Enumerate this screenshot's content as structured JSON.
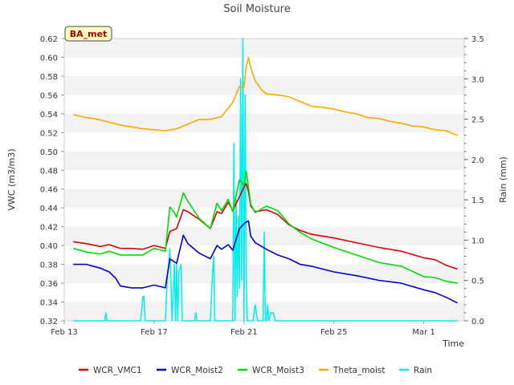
{
  "chart_data": {
    "type": "line",
    "title": "Soil Moisture",
    "station_badge": "BA_met",
    "xlabel": "Time",
    "ylabel": "VWC (m3/m3)",
    "y2label": "Rain (mm)",
    "xlim": [
      13,
      30.8
    ],
    "ylim": [
      0.32,
      0.62
    ],
    "y2lim": [
      0,
      3.5
    ],
    "x_tick_values": [
      13,
      17,
      21,
      25,
      29
    ],
    "x_tick_labels": [
      "Feb 13",
      "Feb 17",
      "Feb 21",
      "Feb 25",
      "Mar 1"
    ],
    "y_ticks": [
      "0.32",
      "0.34",
      "0.36",
      "0.38",
      "0.40",
      "0.42",
      "0.44",
      "0.46",
      "0.48",
      "0.50",
      "0.52",
      "0.54",
      "0.56",
      "0.58",
      "0.60",
      "0.62"
    ],
    "y2_ticks": [
      "0.0",
      "0.5",
      "1.0",
      "1.5",
      "2.0",
      "2.5",
      "3.0",
      "3.5"
    ],
    "grid": "horizontal bands",
    "legend_position": "bottom",
    "series": [
      {
        "name": "WCR_VMC1",
        "axis": "left",
        "color": "#dd0000",
        "x": [
          13.4,
          14.0,
          14.6,
          15.0,
          15.5,
          16.0,
          16.5,
          17.0,
          17.5,
          17.7,
          18.0,
          18.3,
          18.5,
          19.0,
          19.5,
          19.8,
          20.0,
          20.3,
          20.5,
          20.8,
          21.0,
          21.1,
          21.2,
          21.3,
          21.5,
          22.0,
          22.5,
          23.0,
          23.5,
          24.0,
          25.0,
          26.0,
          27.0,
          28.0,
          29.0,
          29.5,
          30.0,
          30.5
        ],
        "values": [
          0.404,
          0.402,
          0.399,
          0.401,
          0.397,
          0.397,
          0.396,
          0.4,
          0.397,
          0.415,
          0.418,
          0.438,
          0.436,
          0.428,
          0.418,
          0.436,
          0.434,
          0.446,
          0.437,
          0.452,
          0.462,
          0.466,
          0.457,
          0.442,
          0.436,
          0.438,
          0.433,
          0.422,
          0.416,
          0.412,
          0.408,
          0.403,
          0.398,
          0.394,
          0.387,
          0.385,
          0.379,
          0.375
        ]
      },
      {
        "name": "WCR_Moist2",
        "axis": "left",
        "color": "#0000cc",
        "x": [
          13.4,
          14.0,
          14.6,
          15.0,
          15.3,
          15.5,
          16.0,
          16.5,
          17.0,
          17.5,
          17.7,
          18.0,
          18.3,
          18.5,
          19.0,
          19.5,
          19.8,
          20.0,
          20.3,
          20.5,
          20.8,
          21.0,
          21.1,
          21.2,
          21.3,
          21.5,
          22.0,
          22.5,
          23.0,
          23.5,
          24.0,
          25.0,
          26.0,
          27.0,
          28.0,
          29.0,
          29.5,
          30.0,
          30.5
        ],
        "values": [
          0.38,
          0.38,
          0.376,
          0.372,
          0.365,
          0.357,
          0.355,
          0.355,
          0.358,
          0.355,
          0.386,
          0.381,
          0.411,
          0.402,
          0.392,
          0.386,
          0.4,
          0.396,
          0.401,
          0.395,
          0.418,
          0.423,
          0.425,
          0.426,
          0.41,
          0.403,
          0.396,
          0.39,
          0.386,
          0.38,
          0.378,
          0.372,
          0.368,
          0.363,
          0.36,
          0.353,
          0.35,
          0.345,
          0.339
        ]
      },
      {
        "name": "WCR_Moist3",
        "axis": "left",
        "color": "#00dd00",
        "x": [
          13.4,
          14.0,
          14.6,
          15.0,
          15.5,
          16.0,
          16.5,
          17.0,
          17.5,
          17.7,
          17.9,
          18.0,
          18.3,
          18.5,
          19.0,
          19.5,
          19.8,
          20.0,
          20.3,
          20.5,
          20.8,
          21.0,
          21.1,
          21.2,
          21.3,
          21.5,
          22.0,
          22.5,
          23.0,
          23.5,
          24.0,
          25.0,
          26.0,
          27.0,
          28.0,
          29.0,
          29.5,
          30.0,
          30.5
        ],
        "values": [
          0.397,
          0.393,
          0.391,
          0.394,
          0.39,
          0.39,
          0.39,
          0.397,
          0.394,
          0.441,
          0.435,
          0.43,
          0.456,
          0.447,
          0.429,
          0.418,
          0.445,
          0.437,
          0.449,
          0.436,
          0.47,
          0.464,
          0.479,
          0.462,
          0.444,
          0.435,
          0.442,
          0.437,
          0.423,
          0.414,
          0.407,
          0.398,
          0.39,
          0.382,
          0.378,
          0.367,
          0.366,
          0.362,
          0.36
        ]
      },
      {
        "name": "Theta_moist",
        "axis": "left",
        "color": "#ffa500",
        "x": [
          13.4,
          14.0,
          14.5,
          15.0,
          15.5,
          16.0,
          16.5,
          17.0,
          17.5,
          18.0,
          18.5,
          19.0,
          19.5,
          20.0,
          20.5,
          20.8,
          21.0,
          21.1,
          21.2,
          21.3,
          21.5,
          21.8,
          22.0,
          22.5,
          23.0,
          23.5,
          24.0,
          24.5,
          25.0,
          25.5,
          26.0,
          26.5,
          27.0,
          27.5,
          28.0,
          28.5,
          29.0,
          29.5,
          30.0,
          30.5
        ],
        "values": [
          0.539,
          0.536,
          0.534,
          0.531,
          0.528,
          0.526,
          0.524,
          0.523,
          0.522,
          0.524,
          0.529,
          0.534,
          0.534,
          0.537,
          0.552,
          0.569,
          0.568,
          0.59,
          0.6,
          0.589,
          0.575,
          0.565,
          0.561,
          0.56,
          0.558,
          0.553,
          0.548,
          0.547,
          0.545,
          0.542,
          0.54,
          0.536,
          0.535,
          0.532,
          0.53,
          0.527,
          0.526,
          0.523,
          0.522,
          0.517
        ]
      },
      {
        "name": "Rain",
        "axis": "right",
        "color": "#00eeee",
        "x": [
          13.4,
          14.8,
          14.85,
          14.9,
          16.4,
          16.5,
          16.55,
          16.6,
          16.7,
          17.5,
          17.6,
          17.65,
          17.7,
          17.8,
          17.9,
          17.95,
          18.0,
          18.05,
          18.1,
          18.2,
          18.25,
          18.3,
          18.4,
          18.8,
          18.85,
          18.9,
          19.0,
          19.5,
          19.6,
          19.65,
          19.7,
          19.8,
          19.9,
          20.0,
          20.3,
          20.5,
          20.55,
          20.6,
          20.65,
          20.7,
          20.75,
          20.8,
          20.85,
          20.9,
          20.95,
          21.0,
          21.05,
          21.1,
          21.15,
          21.2,
          21.25,
          21.3,
          21.35,
          21.4,
          21.5,
          21.6,
          21.7,
          21.75,
          21.8,
          21.85,
          21.9,
          21.95,
          22.0,
          22.05,
          22.1,
          22.2,
          22.3,
          22.4,
          30.5
        ],
        "values": [
          0,
          0,
          0.1,
          0,
          0,
          0.3,
          0.3,
          0,
          0,
          0,
          0.6,
          0.7,
          0.9,
          0,
          0.7,
          0,
          0.7,
          0,
          0.6,
          0.7,
          0,
          0,
          0,
          0,
          0.1,
          0,
          0,
          0,
          0.6,
          0.8,
          0,
          0,
          0,
          0,
          0,
          0,
          2.2,
          0,
          1.5,
          0.3,
          1.3,
          0.4,
          3.0,
          0.5,
          3.5,
          0,
          2.8,
          0.5,
          0,
          0,
          0,
          0,
          0,
          0,
          0.2,
          0,
          0,
          0,
          0,
          0,
          1.1,
          0,
          0,
          0.2,
          0,
          0.1,
          0.1,
          0,
          0
        ]
      }
    ]
  }
}
